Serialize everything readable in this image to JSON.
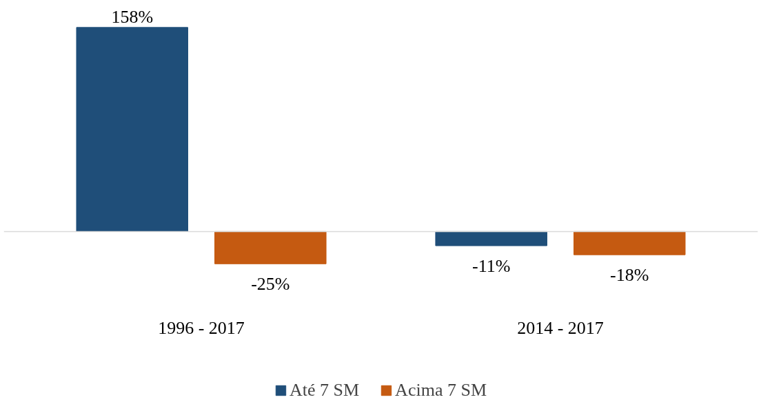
{
  "chart_data": {
    "type": "bar",
    "categories": [
      "1996 - 2017",
      "2014 - 2017"
    ],
    "series": [
      {
        "name": "Até 7 SM",
        "color": "#1f4e79",
        "values": [
          158,
          -11
        ],
        "value_labels": [
          "158%",
          "-11%"
        ]
      },
      {
        "name": "Acima 7 SM",
        "color": "#c55a11",
        "values": [
          -25,
          -18
        ],
        "value_labels": [
          "-25%",
          "-18%"
        ]
      }
    ],
    "data_labels": true,
    "legend": "bottom",
    "grid": false
  }
}
